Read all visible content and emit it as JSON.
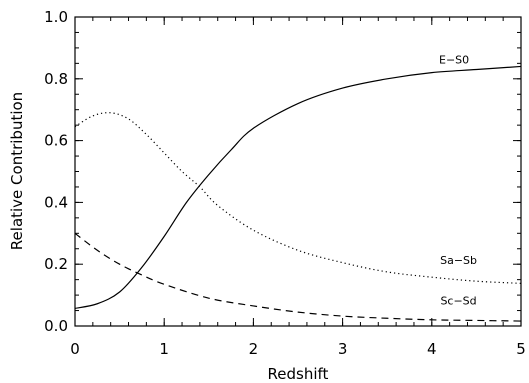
{
  "chart_data": {
    "type": "line",
    "title": "",
    "xlabel": "Redshift",
    "ylabel": "Relative Contribution",
    "xlim": [
      0,
      5
    ],
    "ylim": [
      0,
      1.0
    ],
    "x_ticks": [
      0,
      1,
      2,
      3,
      4,
      5
    ],
    "y_ticks": [
      0.0,
      0.2,
      0.4,
      0.6,
      0.8,
      1.0
    ],
    "x_tick_labels": [
      "0",
      "1",
      "2",
      "3",
      "4",
      "5"
    ],
    "y_tick_labels": [
      "0.0",
      "0.2",
      "0.4",
      "0.6",
      "0.8",
      "1.0"
    ],
    "grid": false,
    "legend": "inline labels",
    "series": [
      {
        "name": "E−S0",
        "style": "solid",
        "color": "#000000",
        "label_at": [
          4.25,
          0.85
        ],
        "x": [
          0,
          0.25,
          0.5,
          0.75,
          1.0,
          1.25,
          1.5,
          1.75,
          2.0,
          2.5,
          3.0,
          3.5,
          4.0,
          4.5,
          5.0
        ],
        "y": [
          0.057,
          0.072,
          0.11,
          0.19,
          0.29,
          0.4,
          0.49,
          0.57,
          0.64,
          0.72,
          0.77,
          0.8,
          0.82,
          0.83,
          0.84
        ]
      },
      {
        "name": "Sa−Sb",
        "style": "dotted",
        "color": "#000000",
        "label_at": [
          4.3,
          0.2
        ],
        "x": [
          0,
          0.2,
          0.4,
          0.6,
          0.8,
          1.0,
          1.2,
          1.4,
          1.6,
          2.0,
          2.5,
          3.0,
          3.5,
          4.0,
          4.5,
          5.0
        ],
        "y": [
          0.645,
          0.68,
          0.69,
          0.67,
          0.62,
          0.56,
          0.5,
          0.45,
          0.39,
          0.31,
          0.245,
          0.205,
          0.175,
          0.158,
          0.145,
          0.138
        ]
      },
      {
        "name": "Sc−Sd",
        "style": "dashed",
        "color": "#000000",
        "label_at": [
          4.3,
          0.07
        ],
        "x": [
          0,
          0.25,
          0.5,
          0.75,
          1.0,
          1.5,
          2.0,
          2.5,
          3.0,
          3.5,
          4.0,
          4.5,
          5.0
        ],
        "y": [
          0.3,
          0.245,
          0.2,
          0.165,
          0.135,
          0.09,
          0.065,
          0.045,
          0.032,
          0.025,
          0.02,
          0.018,
          0.016
        ]
      }
    ]
  }
}
